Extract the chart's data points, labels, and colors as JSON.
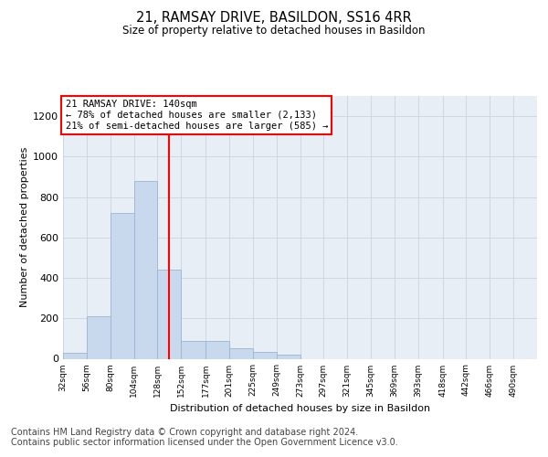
{
  "title": "21, RAMSAY DRIVE, BASILDON, SS16 4RR",
  "subtitle": "Size of property relative to detached houses in Basildon",
  "xlabel": "Distribution of detached houses by size in Basildon",
  "ylabel": "Number of detached properties",
  "bar_color": "#c8d9ed",
  "bar_edge_color": "#9ab5d4",
  "grid_color": "#c8d4e0",
  "background_color": "#e8eef5",
  "annotation_text": "21 RAMSAY DRIVE: 140sqm\n← 78% of detached houses are smaller (2,133)\n21% of semi-detached houses are larger (585) →",
  "annotation_box_color": "white",
  "annotation_border_color": "red",
  "vline_x": 140,
  "vline_color": "red",
  "bin_edges": [
    32,
    56,
    80,
    104,
    128,
    152,
    177,
    201,
    225,
    249,
    273,
    297,
    321,
    345,
    369,
    393,
    418,
    442,
    466,
    490,
    514
  ],
  "bin_counts": [
    30,
    210,
    720,
    880,
    440,
    90,
    90,
    50,
    35,
    20,
    0,
    0,
    0,
    0,
    0,
    0,
    0,
    0,
    0,
    0
  ],
  "ylim": [
    0,
    1300
  ],
  "yticks": [
    0,
    200,
    400,
    600,
    800,
    1000,
    1200
  ],
  "footer_text": "Contains HM Land Registry data © Crown copyright and database right 2024.\nContains public sector information licensed under the Open Government Licence v3.0.",
  "footer_fontsize": 7.0
}
